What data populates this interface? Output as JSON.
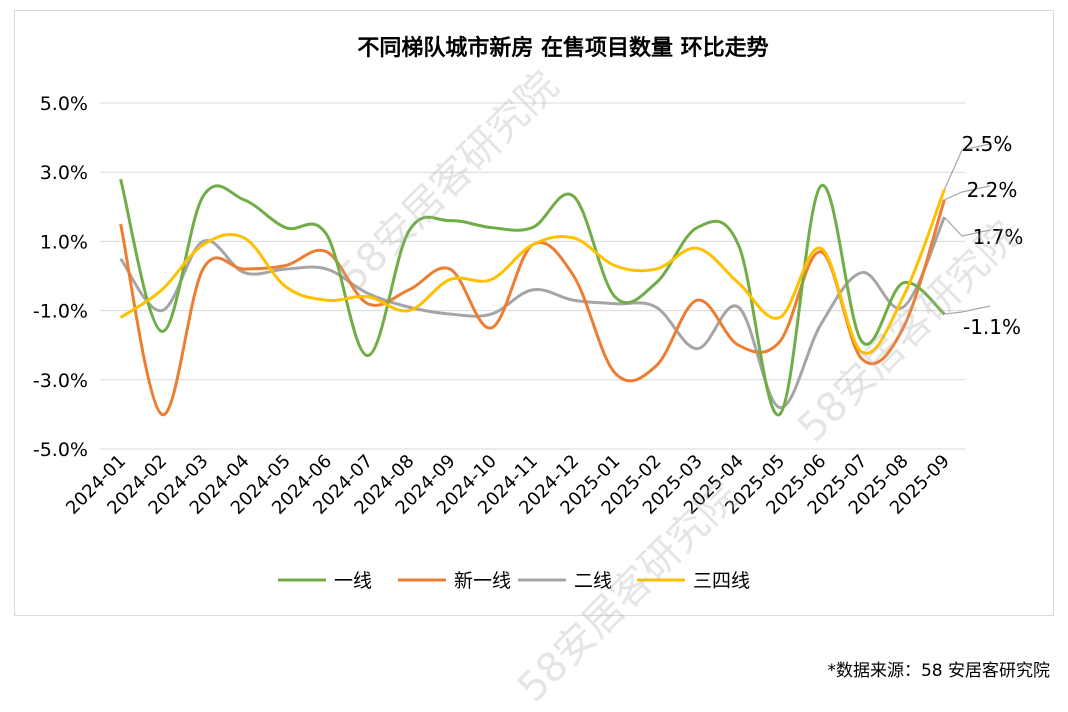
{
  "chart_data": {
    "type": "line",
    "title": "不同梯队城市新房 在售项目数量 环比走势",
    "x": [
      "2024-01",
      "2024-02",
      "2024-03",
      "2024-04",
      "2024-05",
      "2024-06",
      "2024-07",
      "2024-08",
      "2024-09",
      "2024-10",
      "2024-11",
      "2024-12",
      "2025-01",
      "2025-02",
      "2025-03",
      "2025-04",
      "2025-05",
      "2025-06",
      "2025-07",
      "2025-08",
      "2025-09"
    ],
    "ylim": [
      -5.0,
      5.0
    ],
    "yticks": [
      "5.0%",
      "3.0%",
      "1.0%",
      "-1.0%",
      "-3.0%",
      "-5.0%"
    ],
    "ytick_values": [
      5,
      3,
      1,
      -1,
      -3,
      -5
    ],
    "series": [
      {
        "name": "一线",
        "color": "#70ad47",
        "values": [
          2.8,
          -1.6,
          2.3,
          2.2,
          1.4,
          1.2,
          -2.3,
          1.3,
          1.6,
          1.4,
          1.4,
          2.3,
          -0.6,
          -0.2,
          1.4,
          0.9,
          -4.0,
          2.6,
          -1.9,
          -0.2,
          -1.1
        ]
      },
      {
        "name": "新一线",
        "color": "#ed7d31",
        "values": [
          1.5,
          -4.0,
          0.2,
          0.2,
          0.3,
          0.7,
          -0.8,
          -0.4,
          0.2,
          -1.5,
          0.9,
          0.0,
          -2.8,
          -2.6,
          -0.7,
          -2.0,
          -1.9,
          0.7,
          -2.4,
          -1.5,
          2.2
        ]
      },
      {
        "name": "二线",
        "color": "#a5a5a5",
        "values": [
          0.5,
          -1.0,
          1.0,
          0.1,
          0.2,
          0.2,
          -0.5,
          -0.9,
          -1.1,
          -1.1,
          -0.4,
          -0.7,
          -0.8,
          -0.9,
          -2.1,
          -0.9,
          -3.8,
          -1.4,
          0.1,
          -0.9,
          1.7
        ]
      },
      {
        "name": "三四线",
        "color": "#ffc000",
        "values": [
          -1.2,
          -0.4,
          0.9,
          1.1,
          -0.3,
          -0.7,
          -0.6,
          -1.0,
          -0.1,
          -0.1,
          0.9,
          1.1,
          0.3,
          0.2,
          0.8,
          -0.2,
          -1.2,
          0.8,
          -2.2,
          -0.6,
          2.5
        ]
      }
    ],
    "end_labels": [
      "2.5%",
      "2.2%",
      "1.7%",
      "-1.1%"
    ],
    "legend_position": "bottom",
    "grid": true
  },
  "source_note": "*数据来源：58 安居客研究院",
  "watermark_text": "58安居客研究院"
}
